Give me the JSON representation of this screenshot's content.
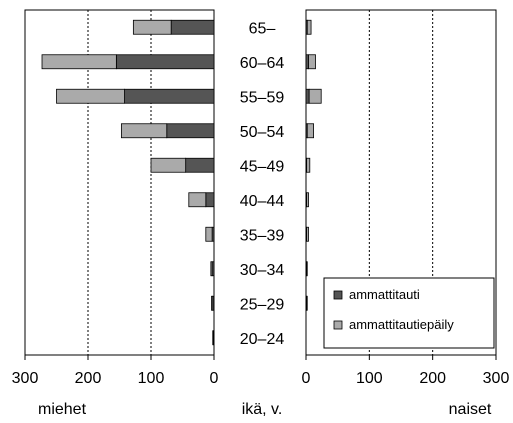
{
  "chart_data": {
    "type": "bar",
    "orientation": "horizontal",
    "layout": "population-pyramid",
    "categories": [
      "65–",
      "60–64",
      "55–59",
      "50–54",
      "45–49",
      "40–44",
      "35–39",
      "30–34",
      "25–29",
      "20–24"
    ],
    "center_label": "ikä, v.",
    "panels": [
      {
        "label": "miehet",
        "direction": "left",
        "xlim": [
          0,
          300
        ],
        "ticks": [
          300,
          200,
          100,
          0
        ],
        "grid": true,
        "series": [
          {
            "name": "ammattitauti",
            "values": [
              68,
              155,
              142,
              75,
              45,
              13,
              3,
              3,
              2,
              1
            ]
          },
          {
            "name": "ammattitautiepäily",
            "values": [
              60,
              118,
              108,
              72,
              55,
              27,
              10,
              2,
              2,
              1
            ]
          }
        ]
      },
      {
        "label": "naiset",
        "direction": "right",
        "xlim": [
          0,
          300
        ],
        "ticks": [
          0,
          100,
          200,
          300
        ],
        "grid": true,
        "series": [
          {
            "name": "ammattitauti",
            "values": [
              2,
              4,
              5,
              2,
              1,
              1,
              1,
              1,
              1,
              0
            ]
          },
          {
            "name": "ammattitautiepäily",
            "values": [
              6,
              11,
              19,
              10,
              5,
              3,
              3,
              1,
              1,
              0
            ]
          }
        ]
      }
    ],
    "legend": {
      "position": "bottom-right",
      "items": [
        {
          "name": "ammattitauti",
          "color": "#555555"
        },
        {
          "name": "ammattitautiepäily",
          "color": "#aaaaaa"
        }
      ]
    }
  }
}
